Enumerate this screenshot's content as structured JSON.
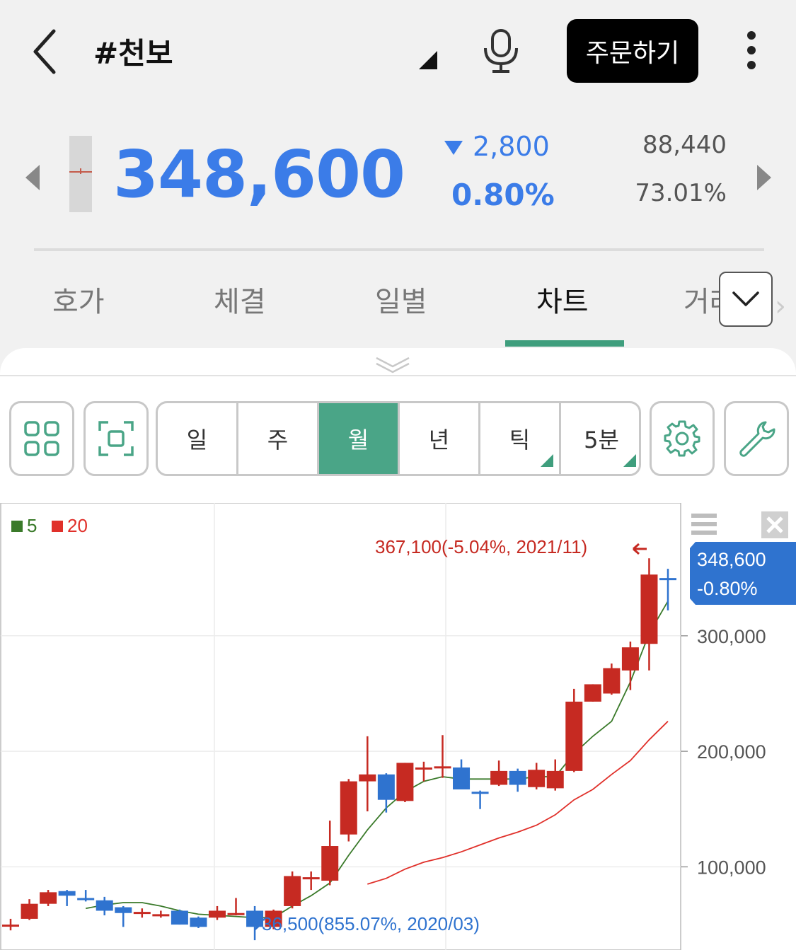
{
  "header": {
    "title": "#천보",
    "order_label": "주문하기"
  },
  "quote": {
    "price": "348,600",
    "change": "2,800",
    "change_pct": "0.80%",
    "volume": "88,440",
    "ratio": "73.01%"
  },
  "tabs": [
    {
      "label": "호가"
    },
    {
      "label": "체결"
    },
    {
      "label": "일별"
    },
    {
      "label": "차트"
    },
    {
      "label": "거래"
    }
  ],
  "periods": [
    {
      "label": "일"
    },
    {
      "label": "주"
    },
    {
      "label": "월"
    },
    {
      "label": "년"
    },
    {
      "label": "틱"
    },
    {
      "label": "5분"
    }
  ],
  "colors": {
    "up": "#c62a22",
    "down": "#2f73cf",
    "accent": "#4aa587",
    "ma5": "#3a7a2a",
    "ma20": "#e0302a"
  },
  "chart_data": {
    "type": "candlestick",
    "legend": [
      {
        "name": "5",
        "color": "#3a7a2a"
      },
      {
        "name": "20",
        "color": "#e0302a"
      }
    ],
    "y_ticks": [
      "300,000",
      "200,000",
      "100,000"
    ],
    "y_tick_values": [
      300000,
      200000,
      100000
    ],
    "ylim": [
      28000,
      415000
    ],
    "current_price_label": "348,600",
    "current_change_label": "-0.80%",
    "max_annotation": "367,100(-5.04%, 2021/11)",
    "min_annotation": "36,500(855.07%, 2020/03)",
    "candles": [
      {
        "o": 50000,
        "h": 55000,
        "l": 45000,
        "c": 50000
      },
      {
        "o": 55000,
        "h": 72000,
        "l": 54000,
        "c": 68000
      },
      {
        "o": 68000,
        "h": 80000,
        "l": 66000,
        "c": 78000
      },
      {
        "o": 79000,
        "h": 80000,
        "l": 66000,
        "c": 75000
      },
      {
        "o": 73000,
        "h": 80000,
        "l": 70000,
        "c": 72000
      },
      {
        "o": 71000,
        "h": 74000,
        "l": 58000,
        "c": 62000
      },
      {
        "o": 65000,
        "h": 66000,
        "l": 48000,
        "c": 60000
      },
      {
        "o": 60000,
        "h": 64000,
        "l": 56000,
        "c": 61000
      },
      {
        "o": 58000,
        "h": 62000,
        "l": 56000,
        "c": 59000
      },
      {
        "o": 62000,
        "h": 63000,
        "l": 50000,
        "c": 50000
      },
      {
        "o": 56000,
        "h": 57000,
        "l": 47000,
        "c": 48000
      },
      {
        "o": 56000,
        "h": 66000,
        "l": 54000,
        "c": 62000
      },
      {
        "o": 60000,
        "h": 73000,
        "l": 58000,
        "c": 60000
      },
      {
        "o": 62000,
        "h": 66000,
        "l": 36500,
        "c": 48000
      },
      {
        "o": 48000,
        "h": 63000,
        "l": 46000,
        "c": 62000
      },
      {
        "o": 66000,
        "h": 96000,
        "l": 64000,
        "c": 92000
      },
      {
        "o": 91000,
        "h": 96000,
        "l": 80000,
        "c": 91000
      },
      {
        "o": 88000,
        "h": 140000,
        "l": 84000,
        "c": 118000
      },
      {
        "o": 128000,
        "h": 176000,
        "l": 122000,
        "c": 174000
      },
      {
        "o": 174000,
        "h": 213000,
        "l": 148000,
        "c": 180000
      },
      {
        "o": 180000,
        "h": 181000,
        "l": 147000,
        "c": 158000
      },
      {
        "o": 157000,
        "h": 190000,
        "l": 156000,
        "c": 190000
      },
      {
        "o": 185000,
        "h": 191000,
        "l": 174000,
        "c": 186000
      },
      {
        "o": 187000,
        "h": 214000,
        "l": 177000,
        "c": 187000
      },
      {
        "o": 186000,
        "h": 193000,
        "l": 167000,
        "c": 167000
      },
      {
        "o": 165000,
        "h": 166000,
        "l": 150000,
        "c": 164000
      },
      {
        "o": 171000,
        "h": 192000,
        "l": 170000,
        "c": 183000
      },
      {
        "o": 183000,
        "h": 185000,
        "l": 165000,
        "c": 171000
      },
      {
        "o": 169000,
        "h": 190000,
        "l": 167000,
        "c": 184000
      },
      {
        "o": 168000,
        "h": 193000,
        "l": 166000,
        "c": 183000
      },
      {
        "o": 183000,
        "h": 254000,
        "l": 182000,
        "c": 243000
      },
      {
        "o": 243000,
        "h": 258000,
        "l": 243000,
        "c": 258000
      },
      {
        "o": 250000,
        "h": 276000,
        "l": 249000,
        "c": 272000
      },
      {
        "o": 270000,
        "h": 295000,
        "l": 253000,
        "c": 290000
      },
      {
        "o": 293000,
        "h": 367100,
        "l": 270000,
        "c": 353000
      },
      {
        "o": 350000,
        "h": 358000,
        "l": 322000,
        "c": 348600
      }
    ],
    "ma5": [
      null,
      null,
      null,
      null,
      64000,
      67000,
      69000,
      69000,
      66000,
      62000,
      59000,
      58000,
      57000,
      56000,
      56000,
      66000,
      75000,
      86000,
      110000,
      132000,
      151000,
      165000,
      174000,
      178000,
      176000,
      176000,
      176000,
      176000,
      178000,
      178000,
      198000,
      213000,
      226000,
      260000,
      302000,
      330000
    ],
    "ma20": [
      null,
      null,
      null,
      null,
      null,
      null,
      null,
      null,
      null,
      null,
      null,
      null,
      null,
      null,
      null,
      null,
      null,
      null,
      null,
      85000,
      90000,
      98000,
      104000,
      108000,
      113000,
      119000,
      125000,
      130000,
      136000,
      145000,
      158000,
      167000,
      180000,
      192000,
      210000,
      226000
    ]
  }
}
